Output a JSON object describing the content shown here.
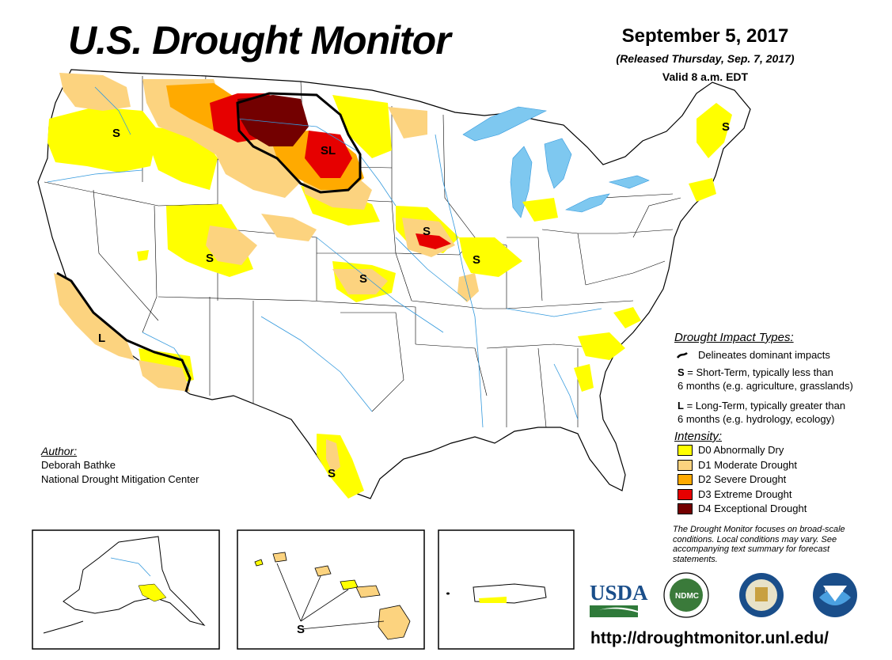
{
  "header": {
    "title": "U.S. Drought Monitor",
    "date": "September 5, 2017",
    "released": "(Released Thursday, Sep. 7, 2017)",
    "valid": "Valid 8 a.m. EDT"
  },
  "impact_legend": {
    "heading": "Drought Impact Types:",
    "delineates": "Delineates dominant impacts",
    "short_key": "S",
    "short_line1": " = Short-Term, typically less than",
    "short_line2": "6 months (e.g. agriculture, grasslands)",
    "long_key": "L",
    "long_line1": " = Long-Term, typically greater than",
    "long_line2": "6 months (e.g. hydrology, ecology)"
  },
  "intensity_legend": {
    "heading": "Intensity:",
    "items": [
      {
        "label": "D0 Abnormally Dry",
        "color": "#ffff00"
      },
      {
        "label": "D1 Moderate Drought",
        "color": "#fcd37f"
      },
      {
        "label": "D2 Severe Drought",
        "color": "#ffaa00"
      },
      {
        "label": "D3 Extreme Drought",
        "color": "#e60000"
      },
      {
        "label": "D4 Exceptional Drought",
        "color": "#730000"
      }
    ]
  },
  "author": {
    "heading": "Author:",
    "name": "Deborah Bathke",
    "org": "National Drought Mitigation Center"
  },
  "note": "The Drought Monitor focuses on broad-scale conditions. Local conditions may vary. See accompanying text summary for forecast statements.",
  "map_labels": {
    "s": "S",
    "l": "L",
    "sl": "SL"
  },
  "logos": {
    "usda": "USDA",
    "ndmc": "NDMC",
    "noaa": "NOAA"
  },
  "url": "http://droughtmonitor.unl.edu/",
  "colors": {
    "water": "#7ec8f0",
    "river": "#3399dd",
    "d0": "#ffff00",
    "d1": "#fcd37f",
    "d2": "#ffaa00",
    "d3": "#e60000",
    "d4": "#730000"
  }
}
